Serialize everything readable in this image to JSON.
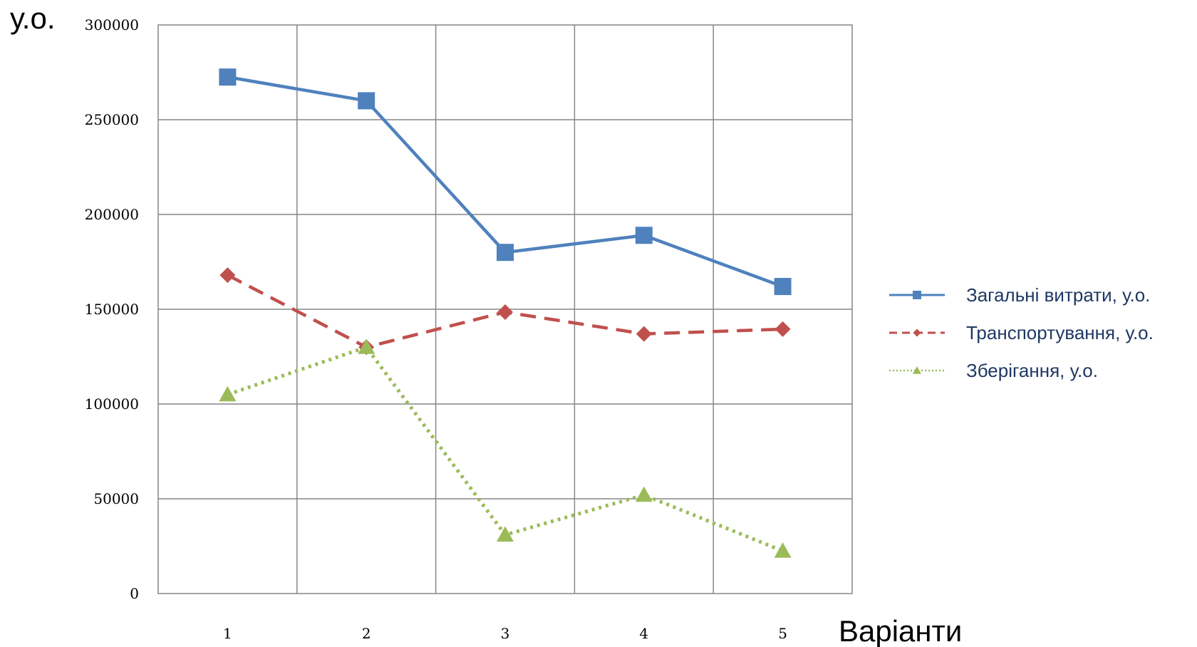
{
  "chart_data": {
    "type": "line",
    "title": "",
    "ylabel": "у.о.",
    "xlabel": "Варіанти",
    "categories": [
      "1",
      "2",
      "3",
      "4",
      "5"
    ],
    "ylim": [
      0,
      300000
    ],
    "yticks": [
      0,
      50000,
      100000,
      150000,
      200000,
      250000,
      300000
    ],
    "ytick_labels": [
      "0",
      "50000",
      "100000",
      "150000",
      "200000",
      "250000",
      "300000"
    ],
    "grid": true,
    "legend_position": "right",
    "series": [
      {
        "name": "Загальні витрати, у.о.",
        "values": [
          272500,
          260000,
          180000,
          189000,
          162000
        ],
        "color": "#4f81bd",
        "line_style": "solid",
        "marker": "square"
      },
      {
        "name": "Транспортування, у.о.",
        "values": [
          168000,
          130000,
          148500,
          137000,
          139500
        ],
        "color": "#c0504d",
        "line_style": "dashed",
        "marker": "diamond"
      },
      {
        "name": "Зберігання, у.о.",
        "values": [
          105000,
          130000,
          31000,
          52000,
          22500
        ],
        "color": "#9bbb59",
        "line_style": "dotted",
        "marker": "triangle"
      }
    ]
  }
}
